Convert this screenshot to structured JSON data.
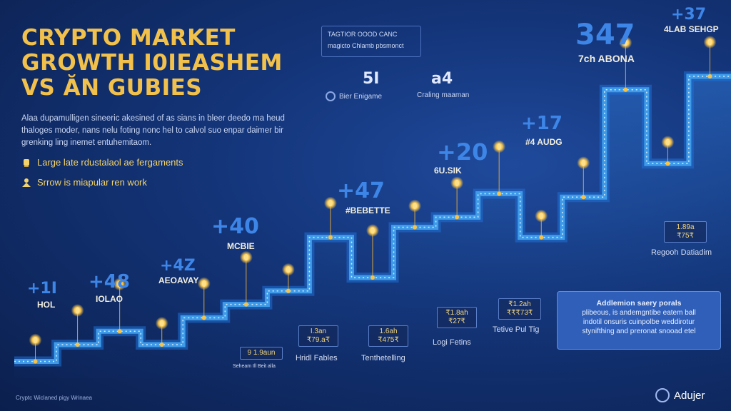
{
  "header": {
    "title_lines": [
      "CRYPTO MARKET",
      "GROWTH I0IEASHEM",
      "VS ĂN GUBIES"
    ],
    "description_lines": [
      "Alaa dupamulligen sineeric akesined of as sians in bleer deedo ma heud",
      "thaloges moder, nans nelu foting nonc hel to calvol suo enpar daimer bir",
      "grenking ling inemet entuhemitaom."
    ],
    "bullets": [
      {
        "icon": "lamp-icon",
        "text": "Large late rdustalaol ae fergaments"
      },
      {
        "icon": "person-icon",
        "text": "Srrow is miapular ren work"
      }
    ]
  },
  "info_box": {
    "line1": "TAGTIOR OOOD CANC",
    "line2": "magicto Chlamb pbsmonct"
  },
  "stats": [
    {
      "value": "5I",
      "label": "Bier Enigame",
      "icon": "ring-icon"
    },
    {
      "value": "a4",
      "label": "Craling maaman",
      "icon": "none"
    }
  ],
  "chart_data": {
    "type": "line",
    "title": "CRYPTO MARKET GROWTH I0IEASHEM VS ĂN GUBIES",
    "xlabel": "",
    "ylabel": "",
    "grid": false,
    "x": [
      1,
      2,
      3,
      4,
      5,
      6,
      7,
      8,
      9,
      10,
      11,
      12,
      13,
      14,
      15,
      16,
      17
    ],
    "series": [
      {
        "values": [
          5,
          10,
          14,
          10,
          18,
          22,
          26,
          42,
          30,
          45,
          48,
          55,
          42,
          54,
          86,
          64,
          90
        ]
      }
    ],
    "ylim": [
      0,
      100
    ],
    "callouts": [
      {
        "value": "+1I",
        "label": "HOL",
        "xi": 1
      },
      {
        "value": "+48",
        "label": "IOLAO",
        "xi": 3
      },
      {
        "value": "+4Z",
        "label": "AEOAVAY",
        "xi": 5
      },
      {
        "value": "+40",
        "label": "MCBIE",
        "xi": 7
      },
      {
        "value": "+47",
        "label": "#BEBETTE",
        "xi": 9
      },
      {
        "value": "+20",
        "label": "6U.SIK",
        "xi": 11
      },
      {
        "value": "+17",
        "label": "#4 AUDG",
        "xi": 13
      },
      {
        "value": "347",
        "label": "7ch ABONA",
        "xi": 15
      },
      {
        "value": "+37",
        "label": "4LAB SEHGP",
        "xi": 16
      }
    ],
    "value_boxes": [
      {
        "top": "9 1.9aun",
        "bottom": "",
        "caption": "Seheam Ill Beit alla"
      },
      {
        "top": "I.3an",
        "bottom": "₹79.a₹",
        "caption": "Hridl Fables"
      },
      {
        "top": "1.6ah",
        "bottom": "₹475₹",
        "caption": "Tenthetelling"
      },
      {
        "top": "₹1.8ah",
        "bottom": "₹27₹",
        "caption": "Logi Fetins"
      },
      {
        "top": "₹1.2ah",
        "bottom": "₹₹₹73₹",
        "caption": "Tetive Pul Tig"
      },
      {
        "top": "1.89a",
        "bottom": "₹75₹",
        "caption": "Regooh Datiadim"
      }
    ]
  },
  "note": {
    "heading": "Addlemion saery porals",
    "lines": [
      "plibeous, is andemgntibe eatem ball",
      "indotil onsuris cuinpolbe weddirotur",
      "stynifthing and preronat snooad etel"
    ]
  },
  "footer": {
    "text": "Cryptc Wiclaned pigy Wrinaea"
  },
  "brand": {
    "name": "Adujer",
    "icon": "globe-icon"
  },
  "colors": {
    "title": "#f2c14b",
    "line": "#3f9be8",
    "accent": "#3d86e8",
    "bg": "#14357a"
  }
}
